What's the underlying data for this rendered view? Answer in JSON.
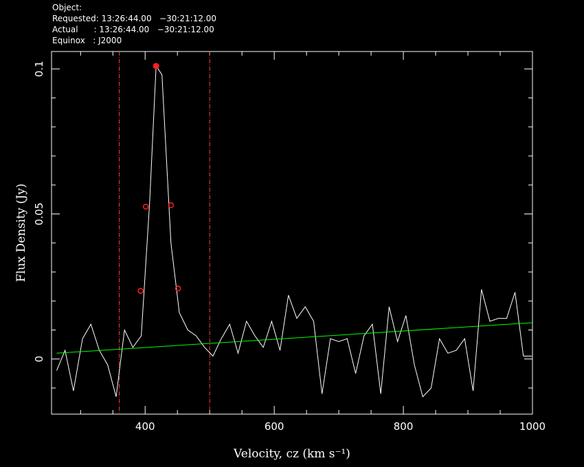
{
  "header": {
    "object": "Object:",
    "requested": "Requested: 13:26:44.00   −30:21:12.00",
    "actual": "Actual      : 13:26:44.00   −30:21:12.00",
    "equinox": "Equinox   : J2000"
  },
  "colors": {
    "spectrum": "#ffffff",
    "baseline": "#00ff00",
    "window": "#ff4040",
    "markers": "#ff2020",
    "background": "#000000"
  },
  "chart_data": {
    "type": "line",
    "xlabel": "Velocity, cz (km s⁻¹)",
    "ylabel": "Flux Density (Jy)",
    "xlim": [
      255,
      1000
    ],
    "ylim": [
      -0.019,
      0.106
    ],
    "x_ticks": [
      400,
      600,
      800,
      1000
    ],
    "y_ticks": [
      0,
      0.05,
      0.1
    ],
    "y_tick_labels": [
      "0",
      "0.05",
      "0.1"
    ],
    "series": [
      {
        "kind": "spectrum",
        "x": [
          263,
          276,
          289,
          303,
          316,
          329,
          342,
          355,
          368,
          381,
          394,
          407,
          417,
          426,
          440,
          453,
          466,
          479,
          492,
          505,
          518,
          531,
          544,
          557,
          570,
          583,
          596,
          609,
          622,
          635,
          648,
          661,
          674,
          687,
          700,
          713,
          726,
          739,
          752,
          765,
          778,
          791,
          804,
          817,
          830,
          843,
          856,
          869,
          882,
          895,
          908,
          921,
          934,
          947,
          960,
          973,
          986,
          999
        ],
        "y": [
          -0.004,
          0.003,
          -0.011,
          0.007,
          0.012,
          0.003,
          -0.002,
          -0.013,
          0.01,
          0.004,
          0.008,
          0.054,
          0.101,
          0.098,
          0.04,
          0.016,
          0.01,
          0.008,
          0.004,
          0.001,
          0.007,
          0.012,
          0.002,
          0.013,
          0.008,
          0.004,
          0.013,
          0.003,
          0.022,
          0.014,
          0.018,
          0.013,
          -0.012,
          0.007,
          0.006,
          0.007,
          -0.005,
          0.008,
          0.012,
          -0.012,
          0.018,
          0.006,
          0.015,
          -0.002,
          -0.013,
          -0.01,
          0.007,
          0.002,
          0.003,
          0.007,
          -0.011,
          0.024,
          0.013,
          0.014,
          0.014,
          0.023,
          0.001,
          0.001
        ]
      },
      {
        "kind": "baseline",
        "x": [
          263,
          1000
        ],
        "y": [
          0.002,
          0.0125
        ]
      }
    ],
    "window_lines_x": [
      360,
      500
    ],
    "peak_point": {
      "x": 417,
      "y": 0.101
    },
    "half_width_points": [
      {
        "x": 401,
        "y": 0.0525
      },
      {
        "x": 440,
        "y": 0.053
      }
    ],
    "twenty_percent_points": [
      {
        "x": 393,
        "y": 0.0235
      },
      {
        "x": 451,
        "y": 0.0243
      }
    ]
  }
}
